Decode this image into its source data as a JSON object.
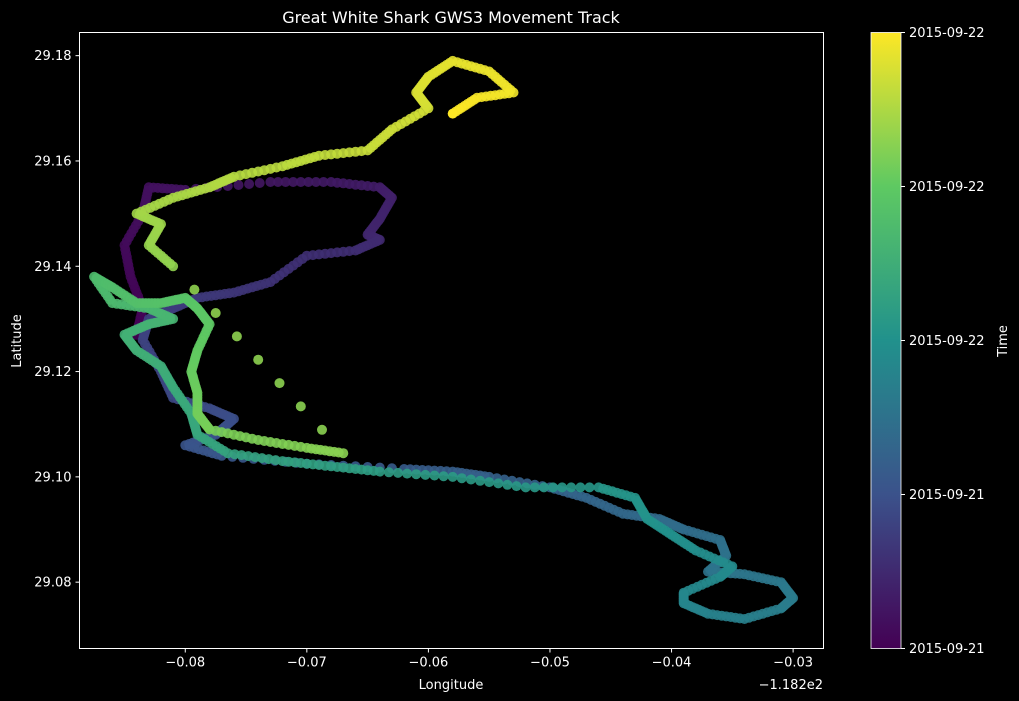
{
  "chart_data": {
    "type": "scatter",
    "title": "Great White Shark GWS3 Movement Track",
    "xlabel": "Longitude",
    "ylabel": "Latitude",
    "x_offset_label": "−1.182e2",
    "xlim": [
      -118.2887,
      -118.2275
    ],
    "ylim": [
      29.0674,
      29.1844
    ],
    "x_ticks": [
      -118.28,
      -118.27,
      -118.26,
      -118.25,
      -118.24,
      -118.23
    ],
    "x_tick_labels": [
      "−0.08",
      "−0.07",
      "−0.06",
      "−0.05",
      "−0.04",
      "−0.03"
    ],
    "y_ticks": [
      29.08,
      29.1,
      29.12,
      29.14,
      29.16,
      29.18
    ],
    "y_tick_labels": [
      "29.08",
      "29.10",
      "29.12",
      "29.14",
      "29.16",
      "29.18"
    ],
    "grid": false,
    "background": "#000000",
    "colormap": "viridis",
    "colorbar": {
      "label": "Time",
      "tick_labels": [
        "2015-09-21",
        "2015-09-21",
        "2015-09-22",
        "2015-09-22",
        "2015-09-22"
      ],
      "stops": [
        "#440154",
        "#3b528b",
        "#21918c",
        "#5ec962",
        "#fde725"
      ]
    },
    "track": [
      [
        -118.284,
        29.127
      ],
      [
        -118.2835,
        29.132
      ],
      [
        -118.2845,
        29.138
      ],
      [
        -118.285,
        29.144
      ],
      [
        -118.2835,
        29.15
      ],
      [
        -118.283,
        29.155
      ],
      [
        -118.28,
        29.1545
      ],
      [
        -118.273,
        29.156
      ],
      [
        -118.268,
        29.156
      ],
      [
        -118.264,
        29.155
      ],
      [
        -118.263,
        29.153
      ],
      [
        -118.264,
        29.149
      ],
      [
        -118.265,
        29.146
      ],
      [
        -118.264,
        29.145
      ],
      [
        -118.266,
        29.143
      ],
      [
        -118.27,
        29.142
      ],
      [
        -118.273,
        29.137
      ],
      [
        -118.276,
        29.135
      ],
      [
        -118.279,
        29.134
      ],
      [
        -118.281,
        29.132
      ],
      [
        -118.283,
        29.13
      ],
      [
        -118.2835,
        29.126
      ],
      [
        -118.282,
        29.12
      ],
      [
        -118.281,
        29.115
      ],
      [
        -118.278,
        29.113
      ],
      [
        -118.276,
        29.111
      ],
      [
        -118.2775,
        29.108
      ],
      [
        -118.28,
        29.106
      ],
      [
        -118.277,
        29.104
      ],
      [
        -118.27,
        29.1025
      ],
      [
        -118.262,
        29.1015
      ],
      [
        -118.258,
        29.101
      ],
      [
        -118.255,
        29.1
      ],
      [
        -118.25,
        29.098
      ],
      [
        -118.247,
        29.096
      ],
      [
        -118.244,
        29.093
      ],
      [
        -118.241,
        29.092
      ],
      [
        -118.239,
        29.09
      ],
      [
        -118.236,
        29.088
      ],
      [
        -118.2355,
        29.085
      ],
      [
        -118.237,
        29.082
      ],
      [
        -118.234,
        29.0815
      ],
      [
        -118.231,
        29.08
      ],
      [
        -118.23,
        29.077
      ],
      [
        -118.231,
        29.075
      ],
      [
        -118.234,
        29.073
      ],
      [
        -118.237,
        29.074
      ],
      [
        -118.239,
        29.076
      ],
      [
        -118.239,
        29.078
      ],
      [
        -118.236,
        29.081
      ],
      [
        -118.235,
        29.083
      ],
      [
        -118.238,
        29.086
      ],
      [
        -118.24,
        29.089
      ],
      [
        -118.242,
        29.092
      ],
      [
        -118.243,
        29.096
      ],
      [
        -118.246,
        29.098
      ],
      [
        -118.252,
        29.098
      ],
      [
        -118.258,
        29.1
      ],
      [
        -118.264,
        29.101
      ],
      [
        -118.268,
        29.102
      ],
      [
        -118.272,
        29.103
      ],
      [
        -118.2765,
        29.1045
      ],
      [
        -118.279,
        29.108
      ],
      [
        -118.2795,
        29.112
      ],
      [
        -118.281,
        29.117
      ],
      [
        -118.282,
        29.121
      ],
      [
        -118.284,
        29.124
      ],
      [
        -118.285,
        29.127
      ],
      [
        -118.283,
        29.129
      ],
      [
        -118.281,
        29.13
      ],
      [
        -118.283,
        29.132
      ],
      [
        -118.286,
        29.133
      ],
      [
        -118.2875,
        29.138
      ],
      [
        -118.286,
        29.136
      ],
      [
        -118.284,
        29.133
      ],
      [
        -118.282,
        29.133
      ],
      [
        -118.28,
        29.134
      ],
      [
        -118.279,
        29.132
      ],
      [
        -118.278,
        29.129
      ],
      [
        -118.279,
        29.124
      ],
      [
        -118.2795,
        29.12
      ],
      [
        -118.279,
        29.116
      ],
      [
        -118.279,
        29.112
      ],
      [
        -118.278,
        29.109
      ],
      [
        -118.274,
        29.107
      ],
      [
        -118.27,
        29.1055
      ],
      [
        -118.267,
        29.1045
      ],
      [
        -118.281,
        29.14
      ],
      [
        -118.283,
        29.144
      ],
      [
        -118.282,
        29.148
      ],
      [
        -118.284,
        29.15
      ],
      [
        -118.281,
        29.153
      ],
      [
        -118.278,
        29.155
      ],
      [
        -118.276,
        29.157
      ],
      [
        -118.272,
        29.159
      ],
      [
        -118.269,
        29.161
      ],
      [
        -118.265,
        29.162
      ],
      [
        -118.263,
        29.166
      ],
      [
        -118.26,
        29.17
      ],
      [
        -118.261,
        29.173
      ],
      [
        -118.26,
        29.176
      ],
      [
        -118.258,
        29.179
      ],
      [
        -118.255,
        29.177
      ],
      [
        -118.253,
        29.173
      ],
      [
        -118.256,
        29.172
      ],
      [
        -118.258,
        29.169
      ]
    ]
  }
}
